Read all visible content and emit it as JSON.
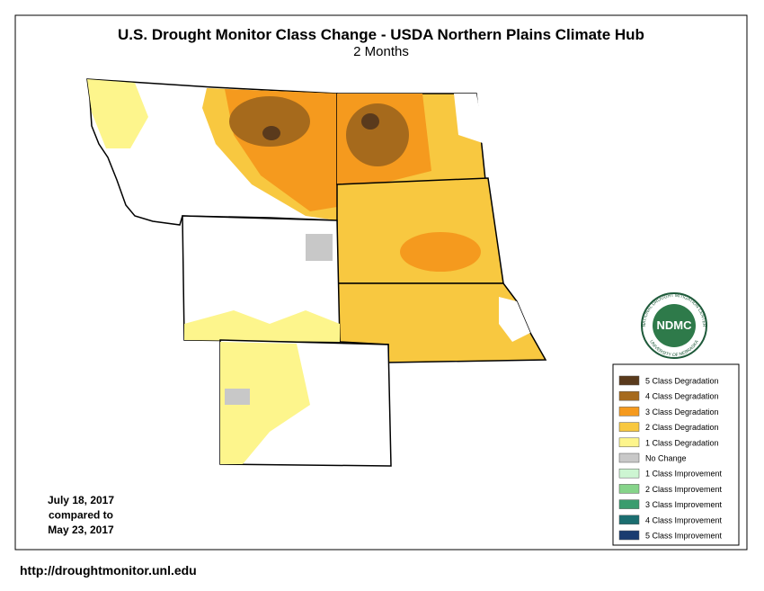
{
  "header": {
    "title": "U.S. Drought Monitor Class Change - USDA Northern Plains Climate Hub",
    "subtitle": "2 Months"
  },
  "legend": {
    "entries": [
      {
        "label": "5 Class Degradation",
        "color": "#5a3a1c"
      },
      {
        "label": "4 Class Degradation",
        "color": "#a66a1c"
      },
      {
        "label": "3 Class Degradation",
        "color": "#f59a1e"
      },
      {
        "label": "2 Class Degradation",
        "color": "#f8c840"
      },
      {
        "label": "1 Class Degradation",
        "color": "#fdf58c"
      },
      {
        "label": "No Change",
        "color": "#c8c8c8"
      },
      {
        "label": "1 Class Improvement",
        "color": "#cdf5d2"
      },
      {
        "label": "2 Class Improvement",
        "color": "#86d48a"
      },
      {
        "label": "3 Class Improvement",
        "color": "#3a9c6e"
      },
      {
        "label": "4 Class Improvement",
        "color": "#1b6e70"
      },
      {
        "label": "5 Class Improvement",
        "color": "#1a3c70"
      }
    ]
  },
  "comparison": [
    "July 18, 2017",
    "compared to",
    "May 23, 2017"
  ],
  "logo": {
    "name": "NDMC",
    "ring_top": "NATIONAL DROUGHT MITIGATION CENTER",
    "ring_bottom": "UNIVERSITY OF NEBRASKA"
  },
  "footer": {
    "url": "http://droughtmonitor.unl.edu"
  }
}
